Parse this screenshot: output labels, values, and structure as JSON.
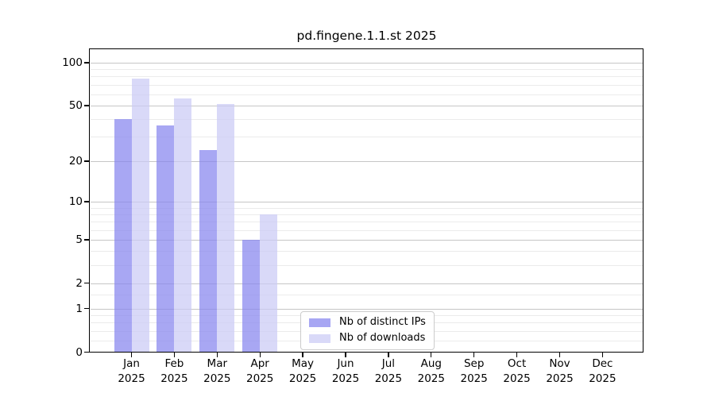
{
  "chart_data": {
    "type": "bar",
    "title": "pd.fingene.1.1.st 2025",
    "categories": [
      "Jan 2025",
      "Feb 2025",
      "Mar 2025",
      "Apr 2025",
      "May 2025",
      "Jun 2025",
      "Jul 2025",
      "Aug 2025",
      "Sep 2025",
      "Oct 2025",
      "Nov 2025",
      "Dec 2025"
    ],
    "series": [
      {
        "name": "Nb of distinct IPs",
        "color": "#a7a6f3",
        "bar_fill": "rgba(134,133,238,0.72)",
        "values": [
          40,
          36,
          24,
          5,
          null,
          null,
          null,
          null,
          null,
          null,
          null,
          null
        ]
      },
      {
        "name": "Nb of downloads",
        "color": "#d9d9f8",
        "bar_fill": "rgba(203,203,245,0.72)",
        "values": [
          77,
          56,
          51,
          8,
          null,
          null,
          null,
          null,
          null,
          null,
          null,
          null
        ]
      }
    ],
    "xlabel": "",
    "ylabel": "",
    "y_scale": "log1p",
    "y_ticks": [
      0,
      1,
      2,
      5,
      10,
      20,
      50,
      100
    ],
    "y_minor_gridlines": [
      0.2,
      0.4,
      0.6,
      0.8,
      1.5,
      3,
      4,
      6,
      7,
      8,
      9,
      30,
      40,
      60,
      70,
      80,
      90
    ],
    "ylim": [
      0,
      125
    ],
    "grid": "horizontal",
    "legend_position": "lower-center-inside",
    "colors": {
      "major_grid": "#c6c6c6",
      "minor_grid": "#ebebeb",
      "spine": "#000000",
      "background": "#ffffff"
    }
  }
}
